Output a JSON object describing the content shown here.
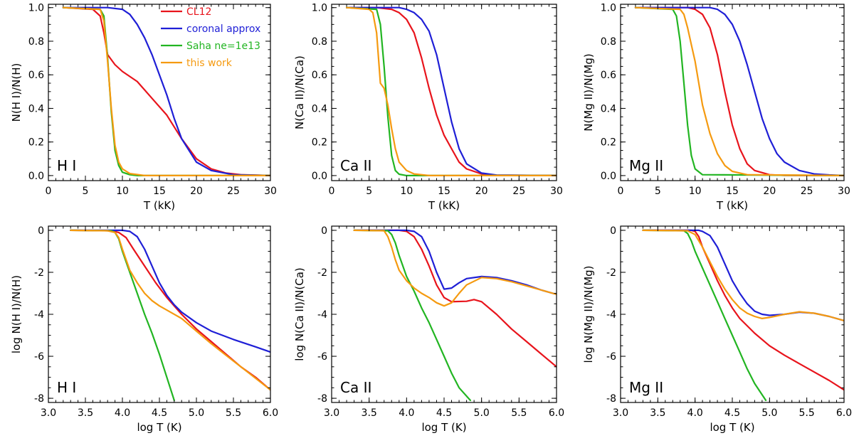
{
  "figure_name": "ionization-fraction-panels",
  "chart_data": [
    {
      "type": "line",
      "name": "hi-linear",
      "panel_label": "H I",
      "xlabel": "T (kK)",
      "ylabel": "N(H I)/N(H)",
      "xlim": [
        0,
        30
      ],
      "ylim": [
        -0.03,
        1.02
      ],
      "xticks": [
        0,
        5,
        10,
        15,
        20,
        25,
        30
      ],
      "yticks": [
        0.0,
        0.2,
        0.4,
        0.6,
        0.8,
        1.0
      ],
      "ytick_labels": [
        "0.0",
        "0.2",
        "0.4",
        "0.6",
        "0.8",
        "1.0"
      ],
      "show_legend": true,
      "series": [
        {
          "name": "CL12",
          "color": "#e8141c",
          "x": [
            2,
            6,
            7,
            7.5,
            8,
            9,
            10,
            12,
            14,
            16,
            18,
            20,
            22,
            24,
            26,
            30
          ],
          "y": [
            1.0,
            0.99,
            0.95,
            0.85,
            0.72,
            0.66,
            0.62,
            0.56,
            0.46,
            0.36,
            0.22,
            0.1,
            0.04,
            0.015,
            0.005,
            0.0
          ]
        },
        {
          "name": "coronal approx",
          "color": "#1f1fd6",
          "x": [
            2,
            8,
            10,
            11,
            12,
            13,
            14,
            15,
            16,
            17,
            18,
            20,
            22,
            25,
            30
          ],
          "y": [
            1.0,
            1.0,
            0.99,
            0.96,
            0.9,
            0.82,
            0.72,
            0.6,
            0.48,
            0.34,
            0.22,
            0.08,
            0.03,
            0.005,
            0.0
          ]
        },
        {
          "name": "Saha ne=1e13",
          "color": "#22b522",
          "x": [
            2,
            7,
            7.5,
            8,
            8.5,
            9,
            9.5,
            10,
            11,
            12,
            30
          ],
          "y": [
            1.0,
            0.99,
            0.95,
            0.7,
            0.38,
            0.15,
            0.06,
            0.02,
            0.005,
            0.0,
            0.0
          ]
        },
        {
          "name": "this work",
          "color": "#f59a10",
          "x": [
            2,
            7,
            7.5,
            8,
            8.5,
            9,
            9.5,
            10,
            11,
            13,
            30
          ],
          "y": [
            1.0,
            0.99,
            0.92,
            0.68,
            0.4,
            0.18,
            0.08,
            0.04,
            0.012,
            0.0,
            0.0
          ]
        }
      ]
    },
    {
      "type": "line",
      "name": "caii-linear",
      "panel_label": "Ca II",
      "xlabel": "T (kK)",
      "ylabel": "N(Ca II)/N(Ca)",
      "xlim": [
        0,
        30
      ],
      "ylim": [
        -0.03,
        1.02
      ],
      "xticks": [
        0,
        5,
        10,
        15,
        20,
        25,
        30
      ],
      "yticks": [
        0.0,
        0.2,
        0.4,
        0.6,
        0.8,
        1.0
      ],
      "ytick_labels": [
        "0.0",
        "0.2",
        "0.4",
        "0.6",
        "0.8",
        "1.0"
      ],
      "show_legend": false,
      "series": [
        {
          "name": "CL12",
          "color": "#e8141c",
          "x": [
            2,
            6,
            8,
            9,
            10,
            11,
            12,
            13,
            14,
            15,
            16,
            17,
            18,
            20,
            22,
            30
          ],
          "y": [
            1.0,
            1.0,
            0.99,
            0.97,
            0.93,
            0.85,
            0.7,
            0.52,
            0.36,
            0.24,
            0.16,
            0.08,
            0.04,
            0.01,
            0.002,
            0.0
          ]
        },
        {
          "name": "coronal approx",
          "color": "#1f1fd6",
          "x": [
            2,
            9,
            10,
            11,
            12,
            13,
            14,
            15,
            16,
            17,
            18,
            20,
            22,
            30
          ],
          "y": [
            1.0,
            1.0,
            0.99,
            0.97,
            0.93,
            0.86,
            0.72,
            0.52,
            0.32,
            0.16,
            0.07,
            0.015,
            0.003,
            0.0
          ]
        },
        {
          "name": "Saha ne=1e13",
          "color": "#22b522",
          "x": [
            2,
            6,
            6.5,
            7,
            7.5,
            8,
            8.5,
            9,
            10,
            30
          ],
          "y": [
            1.0,
            0.99,
            0.9,
            0.65,
            0.35,
            0.12,
            0.03,
            0.008,
            0.0,
            0.0
          ]
        },
        {
          "name": "this work",
          "color": "#f59a10",
          "x": [
            2,
            5,
            5.5,
            6,
            6.5,
            7,
            7.5,
            8,
            8.5,
            9,
            10,
            11,
            13,
            30
          ],
          "y": [
            1.0,
            0.99,
            0.97,
            0.85,
            0.55,
            0.52,
            0.42,
            0.28,
            0.16,
            0.08,
            0.03,
            0.01,
            0.0,
            0.0
          ]
        }
      ]
    },
    {
      "type": "line",
      "name": "mgii-linear",
      "panel_label": "Mg II",
      "xlabel": "T (kK)",
      "ylabel": "N(Mg II)/N(Mg)",
      "xlim": [
        0,
        30
      ],
      "ylim": [
        -0.03,
        1.02
      ],
      "xticks": [
        0,
        5,
        10,
        15,
        20,
        25,
        30
      ],
      "yticks": [
        0.0,
        0.2,
        0.4,
        0.6,
        0.8,
        1.0
      ],
      "ytick_labels": [
        "0.0",
        "0.2",
        "0.4",
        "0.6",
        "0.8",
        "1.0"
      ],
      "show_legend": false,
      "series": [
        {
          "name": "CL12",
          "color": "#e8141c",
          "x": [
            2,
            9,
            10,
            11,
            12,
            13,
            14,
            15,
            16,
            17,
            18,
            20,
            22,
            30
          ],
          "y": [
            1.0,
            1.0,
            0.99,
            0.96,
            0.88,
            0.72,
            0.5,
            0.3,
            0.16,
            0.07,
            0.03,
            0.005,
            0.001,
            0.0
          ]
        },
        {
          "name": "coronal approx",
          "color": "#1f1fd6",
          "x": [
            2,
            12,
            13,
            14,
            15,
            16,
            17,
            18,
            19,
            20,
            21,
            22,
            24,
            26,
            28,
            30
          ],
          "y": [
            1.0,
            1.0,
            0.99,
            0.96,
            0.9,
            0.8,
            0.66,
            0.5,
            0.34,
            0.22,
            0.13,
            0.08,
            0.03,
            0.01,
            0.004,
            0.0
          ]
        },
        {
          "name": "Saha ne=1e13",
          "color": "#22b522",
          "x": [
            2,
            7,
            7.5,
            8,
            8.5,
            9,
            9.5,
            10,
            11,
            30
          ],
          "y": [
            1.0,
            0.99,
            0.95,
            0.8,
            0.55,
            0.3,
            0.12,
            0.04,
            0.005,
            0.0
          ]
        },
        {
          "name": "this work",
          "color": "#f59a10",
          "x": [
            2,
            8,
            8.5,
            9,
            9.5,
            10,
            10.5,
            11,
            12,
            13,
            14,
            15,
            17,
            30
          ],
          "y": [
            1.0,
            0.99,
            0.96,
            0.88,
            0.78,
            0.68,
            0.55,
            0.42,
            0.25,
            0.13,
            0.06,
            0.025,
            0.005,
            0.0
          ]
        }
      ]
    },
    {
      "type": "line",
      "name": "hi-log",
      "panel_label": "H I",
      "xlabel": "log T (K)",
      "ylabel": "log N(H I)/N(H)",
      "xlim": [
        3.0,
        6.0
      ],
      "ylim": [
        -8.2,
        0.2
      ],
      "xticks": [
        3.0,
        3.5,
        4.0,
        4.5,
        5.0,
        5.5,
        6.0
      ],
      "xtick_labels": [
        "3.0",
        "3.5",
        "4.0",
        "4.5",
        "5.0",
        "5.5",
        "6.0"
      ],
      "yticks": [
        0,
        -2,
        -4,
        -6,
        -8
      ],
      "ytick_labels": [
        "0",
        "-2",
        "-4",
        "-6",
        "-8"
      ],
      "show_legend": false,
      "series": [
        {
          "name": "CL12",
          "color": "#e8141c",
          "x": [
            3.3,
            3.85,
            3.95,
            4.05,
            4.15,
            4.3,
            4.45,
            4.6,
            4.8,
            5.0,
            5.2,
            5.4,
            5.6,
            5.8,
            6.0
          ],
          "y": [
            0,
            -0.02,
            -0.1,
            -0.35,
            -0.9,
            -1.7,
            -2.5,
            -3.2,
            -4.0,
            -4.7,
            -5.3,
            -5.9,
            -6.5,
            -7.0,
            -7.6
          ]
        },
        {
          "name": "coronal approx",
          "color": "#1f1fd6",
          "x": [
            3.3,
            4.0,
            4.1,
            4.2,
            4.3,
            4.4,
            4.5,
            4.6,
            4.7,
            4.8,
            5.0,
            5.2,
            5.5,
            5.8,
            6.0
          ],
          "y": [
            0,
            0,
            -0.05,
            -0.3,
            -0.9,
            -1.7,
            -2.5,
            -3.1,
            -3.55,
            -3.9,
            -4.4,
            -4.8,
            -5.2,
            -5.55,
            -5.8
          ]
        },
        {
          "name": "Saha ne=1e13",
          "color": "#22b522",
          "x": [
            3.3,
            3.85,
            3.9,
            3.95,
            4.0,
            4.05,
            4.1,
            4.2,
            4.3,
            4.4,
            4.5,
            4.6,
            4.7
          ],
          "y": [
            0,
            -0.02,
            -0.1,
            -0.4,
            -1.0,
            -1.5,
            -2.0,
            -3.0,
            -4.0,
            -4.9,
            -5.9,
            -7.0,
            -8.1
          ]
        },
        {
          "name": "this work",
          "color": "#f59a10",
          "x": [
            3.3,
            3.8,
            3.9,
            3.95,
            4.0,
            4.05,
            4.1,
            4.2,
            4.3,
            4.4,
            4.5,
            4.6,
            4.8,
            5.0,
            5.2,
            5.4,
            5.6,
            5.8,
            6.0
          ],
          "y": [
            0,
            -0.02,
            -0.1,
            -0.35,
            -0.9,
            -1.4,
            -1.9,
            -2.5,
            -3.0,
            -3.35,
            -3.6,
            -3.8,
            -4.2,
            -4.8,
            -5.4,
            -5.95,
            -6.5,
            -7.05,
            -7.6
          ]
        }
      ]
    },
    {
      "type": "line",
      "name": "caii-log",
      "panel_label": "Ca II",
      "xlabel": "log T (K)",
      "ylabel": "log N(Ca II)/N(Ca)",
      "xlim": [
        3.0,
        6.0
      ],
      "ylim": [
        -8.2,
        0.2
      ],
      "xticks": [
        3.0,
        3.5,
        4.0,
        4.5,
        5.0,
        5.5,
        6.0
      ],
      "xtick_labels": [
        "3.0",
        "3.5",
        "4.0",
        "4.5",
        "5.0",
        "5.5",
        "6.0"
      ],
      "yticks": [
        0,
        -2,
        -4,
        -6,
        -8
      ],
      "ytick_labels": [
        "0",
        "-2",
        "-4",
        "-6",
        "-8"
      ],
      "show_legend": false,
      "series": [
        {
          "name": "CL12",
          "color": "#e8141c",
          "x": [
            3.3,
            3.9,
            4.0,
            4.1,
            4.2,
            4.3,
            4.4,
            4.5,
            4.6,
            4.8,
            4.9,
            5.0,
            5.2,
            5.4,
            5.6,
            5.8,
            6.0
          ],
          "y": [
            0,
            0,
            -0.05,
            -0.3,
            -0.9,
            -1.7,
            -2.6,
            -3.2,
            -3.4,
            -3.38,
            -3.3,
            -3.4,
            -4.0,
            -4.7,
            -5.3,
            -5.9,
            -6.5
          ]
        },
        {
          "name": "coronal approx",
          "color": "#1f1fd6",
          "x": [
            3.3,
            4.0,
            4.1,
            4.2,
            4.3,
            4.4,
            4.5,
            4.6,
            4.7,
            4.8,
            5.0,
            5.2,
            5.4,
            5.6,
            5.8,
            6.0
          ],
          "y": [
            0,
            0,
            -0.05,
            -0.3,
            -1.0,
            -2.0,
            -2.8,
            -2.75,
            -2.5,
            -2.3,
            -2.2,
            -2.25,
            -2.4,
            -2.6,
            -2.85,
            -3.05
          ]
        },
        {
          "name": "Saha ne=1e13",
          "color": "#22b522",
          "x": [
            3.3,
            3.75,
            3.8,
            3.85,
            3.9,
            3.95,
            4.0,
            4.1,
            4.2,
            4.3,
            4.4,
            4.5,
            4.6,
            4.7,
            4.85
          ],
          "y": [
            0,
            -0.02,
            -0.2,
            -0.6,
            -1.2,
            -1.7,
            -2.2,
            -2.9,
            -3.7,
            -4.4,
            -5.2,
            -6.0,
            -6.8,
            -7.5,
            -8.1
          ]
        },
        {
          "name": "this work",
          "color": "#f59a10",
          "x": [
            3.3,
            3.7,
            3.75,
            3.8,
            3.85,
            3.9,
            4.0,
            4.1,
            4.2,
            4.3,
            4.4,
            4.5,
            4.6,
            4.7,
            4.8,
            5.0,
            5.2,
            5.4,
            5.6,
            5.8,
            6.0
          ],
          "y": [
            0,
            -0.02,
            -0.3,
            -0.8,
            -1.4,
            -1.9,
            -2.4,
            -2.75,
            -3.0,
            -3.2,
            -3.45,
            -3.6,
            -3.45,
            -3.0,
            -2.6,
            -2.25,
            -2.3,
            -2.45,
            -2.65,
            -2.85,
            -3.05
          ]
        }
      ]
    },
    {
      "type": "line",
      "name": "mgii-log",
      "panel_label": "Mg II",
      "xlabel": "log T (K)",
      "ylabel": "log N(Mg II)/N(Mg)",
      "xlim": [
        3.0,
        6.0
      ],
      "ylim": [
        -8.2,
        0.2
      ],
      "xticks": [
        3.0,
        3.5,
        4.0,
        4.5,
        5.0,
        5.5,
        6.0
      ],
      "xtick_labels": [
        "3.0",
        "3.5",
        "4.0",
        "4.5",
        "5.0",
        "5.5",
        "6.0"
      ],
      "yticks": [
        0,
        -2,
        -4,
        -6,
        -8
      ],
      "ytick_labels": [
        "0",
        "-2",
        "-4",
        "-6",
        "-8"
      ],
      "show_legend": false,
      "series": [
        {
          "name": "CL12",
          "color": "#e8141c",
          "x": [
            3.3,
            3.95,
            4.0,
            4.05,
            4.1,
            4.2,
            4.3,
            4.4,
            4.5,
            4.6,
            4.8,
            5.0,
            5.2,
            5.4,
            5.6,
            5.8,
            6.0
          ],
          "y": [
            0,
            0,
            -0.05,
            -0.3,
            -0.8,
            -1.6,
            -2.4,
            -3.1,
            -3.7,
            -4.2,
            -4.9,
            -5.5,
            -5.95,
            -6.35,
            -6.75,
            -7.15,
            -7.6
          ]
        },
        {
          "name": "coronal approx",
          "color": "#1f1fd6",
          "x": [
            3.3,
            4.05,
            4.1,
            4.2,
            4.3,
            4.4,
            4.5,
            4.6,
            4.7,
            4.8,
            4.9,
            5.0,
            5.2,
            5.4,
            5.6,
            5.8,
            6.0
          ],
          "y": [
            0,
            0,
            -0.05,
            -0.25,
            -0.8,
            -1.6,
            -2.4,
            -3.0,
            -3.5,
            -3.85,
            -4.0,
            -4.05,
            -4.0,
            -3.9,
            -3.95,
            -4.1,
            -4.3
          ]
        },
        {
          "name": "Saha ne=1e13",
          "color": "#22b522",
          "x": [
            3.3,
            3.85,
            3.9,
            3.95,
            4.0,
            4.1,
            4.2,
            4.3,
            4.4,
            4.5,
            4.6,
            4.7,
            4.8,
            4.95
          ],
          "y": [
            0,
            -0.02,
            -0.15,
            -0.5,
            -1.0,
            -1.8,
            -2.6,
            -3.4,
            -4.2,
            -5.0,
            -5.8,
            -6.6,
            -7.3,
            -8.1
          ]
        },
        {
          "name": "this work",
          "color": "#f59a10",
          "x": [
            3.3,
            3.9,
            4.0,
            4.1,
            4.2,
            4.3,
            4.4,
            4.5,
            4.6,
            4.7,
            4.8,
            4.9,
            5.0,
            5.2,
            5.4,
            5.6,
            5.8,
            6.0
          ],
          "y": [
            0,
            -0.02,
            -0.2,
            -0.8,
            -1.5,
            -2.2,
            -2.8,
            -3.3,
            -3.7,
            -3.95,
            -4.1,
            -4.2,
            -4.15,
            -4.0,
            -3.88,
            -3.95,
            -4.1,
            -4.3
          ]
        }
      ]
    }
  ]
}
